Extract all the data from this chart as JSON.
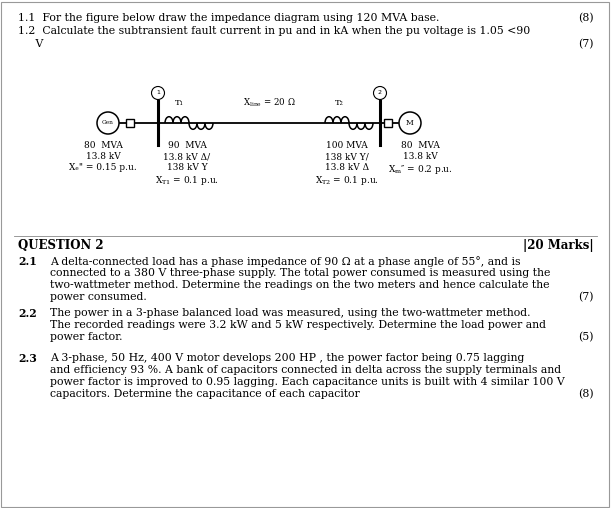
{
  "bg_color": "#ffffff",
  "q1_line1": "1.1  For the figure below draw the impedance diagram using 120 MVA base.",
  "q1_mark1": "(8)",
  "q1_line2": "1.2  Calculate the subtransient fault current in pu and in kA when the pu voltage is 1.05 <90",
  "q1_line2b": "     V",
  "q1_mark2": "(7)",
  "gen_label": "Gen",
  "motor_label": "M",
  "T1_label": "T₁",
  "T2_label": "T₂",
  "bus1_label": "1",
  "bus2_label": "2",
  "xline_label": "X",
  "xline_sub": "line",
  "xline_val": " = 20 Ω",
  "gen_data_1": "80  MVA",
  "gen_data_2": "13.8 kV",
  "gen_data_3": "Xₑ\" = 0.15 p.u.",
  "T1_data_1": "90  MVA",
  "T1_data_2": "13.8 kV Δ/",
  "T1_data_3": "138 kV Y",
  "T1_data_4": "X",
  "T1_data_4b": "T1",
  "T1_data_4c": " = 0.1 p.u.",
  "T2_data_1": "100 MVA",
  "T2_data_2": "138 kV Y/",
  "T2_data_3": "13.8 kV Δ",
  "T2_data_4": "X",
  "T2_data_4b": "T2",
  "T2_data_4c": " = 0.1 p.u.",
  "motor_data_1": "80  MVA",
  "motor_data_2": "13.8 kV",
  "motor_data_3": "Xₘ\" = 0.2 p.u.",
  "q2_title": "QUESTION 2",
  "q2_marks": "|20 Marks|",
  "q21_num": "2.1",
  "q21_lines": [
    "A delta-connected load has a phase impedance of 90 Ω at a phase angle of 55°, and is",
    "connected to a 380 V three-phase supply. The total power consumed is measured using the",
    "two-wattmeter method. Determine the readings on the two meters and hence calculate the",
    "power consumed."
  ],
  "q21_marks": "(7)",
  "q22_num": "2.2",
  "q22_lines": [
    "The power in a 3-phase balanced load was measured, using the two-wattmeter method.",
    "The recorded readings were 3.2 kW and 5 kW respectively. Determine the load power and",
    "power factor."
  ],
  "q22_marks": "(5)",
  "q23_num": "2.3",
  "q23_lines": [
    "A 3-phase, 50 Hz, 400 V motor develops 200 HP , the power factor being 0.75 lagging",
    "and efficiency 93 %. A bank of capacitors connected in delta across the supply terminals and",
    "power factor is improved to 0.95 lagging. Each capacitance units is built with 4 similar 100 V",
    "capacitors. Determine the capacitance of each capacitor"
  ],
  "q23_marks": "(8)"
}
